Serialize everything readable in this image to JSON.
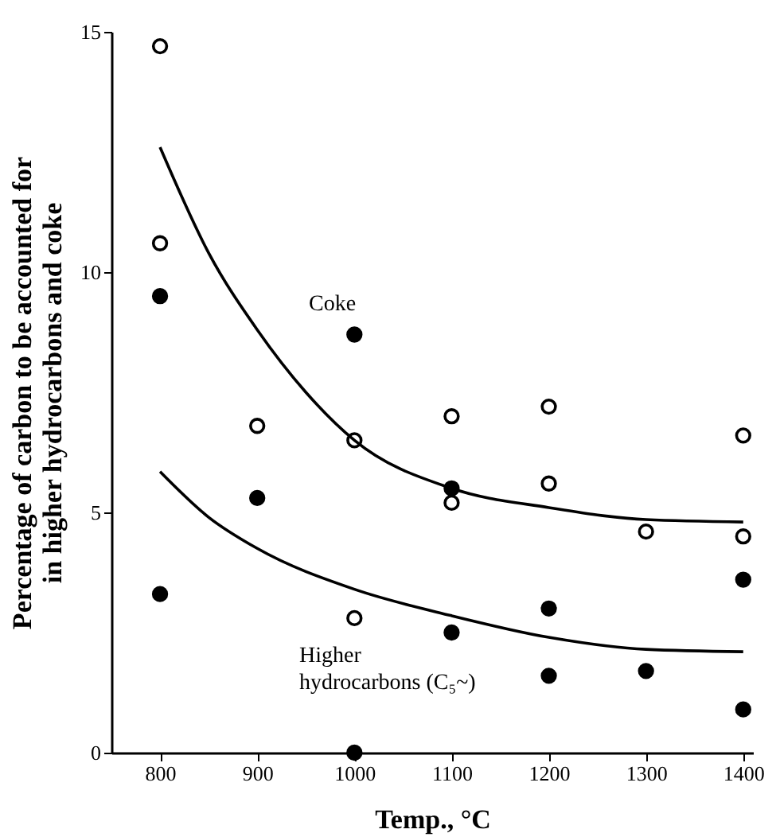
{
  "chart_data": {
    "type": "scatter",
    "xlabel": "Temp., °C",
    "ylabel": "Percentage of carbon to be accounted for\nin higher hydrocarbons and coke",
    "xlim": [
      750,
      1410
    ],
    "xticks": [
      800,
      900,
      1000,
      1100,
      1200,
      1300,
      1400
    ],
    "ylim": [
      0,
      15
    ],
    "yticks": [
      0,
      5,
      10,
      15
    ],
    "grid": false,
    "series": [
      {
        "type": "scatter",
        "marker": "circle",
        "color": "#000000",
        "x": [
          800,
          800,
          900,
          1000,
          1000,
          1100,
          1100,
          1200,
          1200,
          1300,
          1400,
          1400
        ],
        "values": [
          14.7,
          10.6,
          6.8,
          6.5,
          2.8,
          7.0,
          5.2,
          7.2,
          5.6,
          4.6,
          6.6,
          4.5
        ]
      },
      {
        "marker": "circle",
        "color": "#000000",
        "x": [
          800,
          800,
          900,
          1000,
          1000,
          1100,
          1100,
          1200,
          1200,
          1300,
          1400,
          1400
        ],
        "values": [
          9.5,
          3.3,
          5.3,
          8.7,
          0.0,
          5.5,
          2.5,
          3.0,
          1.6,
          1.7,
          3.6,
          0.9
        ]
      },
      {
        "type": "line",
        "marker": "none",
        "color": "#000000",
        "x": [
          800,
          850,
          900,
          950,
          1000,
          1100,
          1200,
          1300,
          1400
        ],
        "values": [
          12.6,
          10.4,
          8.8,
          7.5,
          6.5,
          5.5,
          5.1,
          4.85,
          4.8
        ]
      },
      {
        "type": "line",
        "marker": "none",
        "color": "#000000",
        "x": [
          800,
          850,
          900,
          1000,
          1100,
          1200,
          1300,
          1400
        ],
        "values": [
          5.85,
          4.9,
          4.25,
          3.4,
          2.85,
          2.4,
          2.15,
          2.1
        ]
      }
    ],
    "annotations": [
      "Coke",
      "Higher\nhydrocarbons (C₅~)"
    ]
  }
}
